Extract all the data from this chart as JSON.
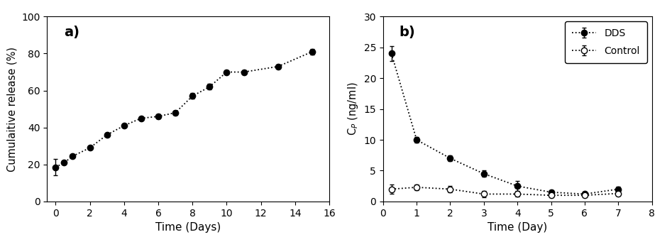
{
  "panel_a": {
    "title": "a)",
    "xlabel": "Time (Days)",
    "ylabel": "Cumulaitive release (%)",
    "xlim": [
      -0.5,
      16
    ],
    "ylim": [
      0,
      100
    ],
    "xticks": [
      0,
      2,
      4,
      6,
      8,
      10,
      12,
      14,
      16
    ],
    "yticks": [
      0,
      20,
      40,
      60,
      80,
      100
    ],
    "x": [
      0,
      0.5,
      1,
      2,
      3,
      4,
      5,
      6,
      7,
      8,
      9,
      10,
      11,
      13,
      15
    ],
    "y": [
      18.5,
      21,
      24.5,
      29,
      36,
      41,
      45,
      46,
      48,
      57,
      62,
      70,
      70,
      73,
      81
    ],
    "yerr": [
      4.5,
      0.5,
      0.5,
      0.5,
      0.8,
      0.8,
      0.8,
      1.0,
      1.2,
      1.5,
      1.5,
      1.0,
      1.0,
      1.0,
      1.5
    ]
  },
  "panel_b": {
    "title": "b)",
    "xlabel": "Time (Day)",
    "ylabel": "C$_P$ (ng/ml)",
    "xlim": [
      0,
      8
    ],
    "ylim": [
      0,
      30
    ],
    "xticks": [
      0,
      1,
      2,
      3,
      4,
      5,
      6,
      7,
      8
    ],
    "yticks": [
      0,
      5,
      10,
      15,
      20,
      25,
      30
    ],
    "dds_x": [
      0.25,
      1,
      2,
      3,
      4,
      5,
      6,
      7
    ],
    "dds_y": [
      24,
      10,
      7,
      4.5,
      2.5,
      1.5,
      1.2,
      2.0
    ],
    "dds_yerr": [
      1.2,
      0.5,
      0.5,
      0.5,
      0.8,
      0.3,
      0.3,
      0.4
    ],
    "control_x": [
      0.25,
      1,
      2,
      3,
      4,
      5,
      6,
      7
    ],
    "control_y": [
      2.0,
      2.3,
      2.0,
      1.2,
      1.2,
      1.0,
      1.0,
      1.3
    ],
    "control_yerr": [
      0.8,
      0.5,
      0.5,
      0.5,
      0.4,
      0.3,
      0.3,
      0.4
    ],
    "legend_labels": [
      "DDS",
      "Control"
    ]
  }
}
